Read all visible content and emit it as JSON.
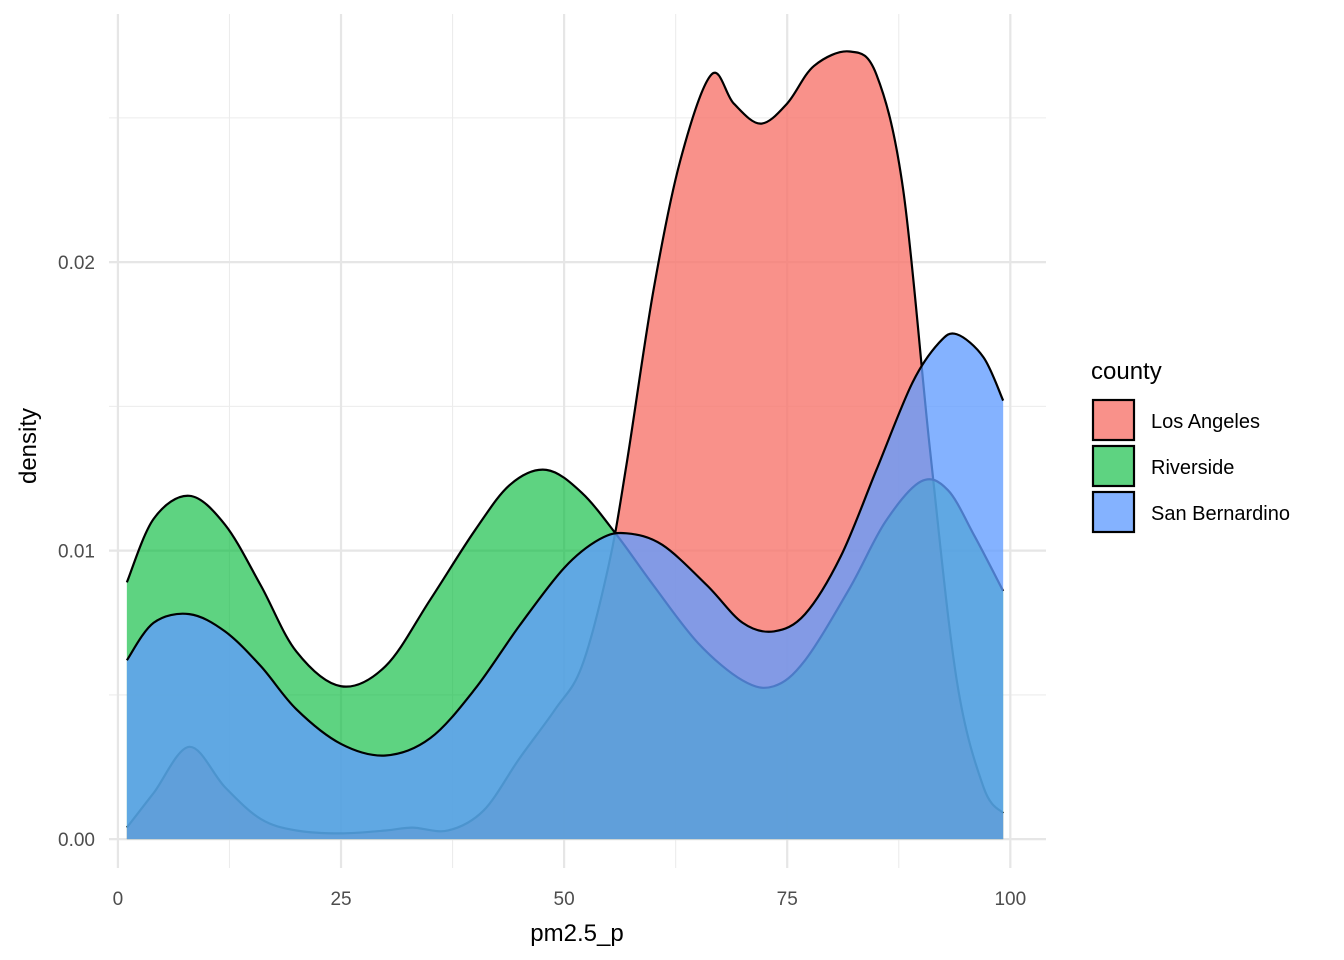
{
  "chart_data": {
    "type": "area",
    "subtype": "density",
    "xlabel": "pm2.5_p",
    "ylabel": "density",
    "xlim": [
      -1,
      104
    ],
    "ylim": [
      -0.001,
      0.0286
    ],
    "x_ticks": [
      0,
      25,
      50,
      75,
      100
    ],
    "x_tick_labels": [
      "0",
      "25",
      "50",
      "75",
      "100"
    ],
    "y_ticks": [
      0.0,
      0.01,
      0.02
    ],
    "y_tick_labels": [
      "0.00",
      "0.01",
      "0.02"
    ],
    "grid": true,
    "legend": {
      "title": "county",
      "position": "right"
    },
    "series": [
      {
        "name": "Los Angeles",
        "color": "#F8766D",
        "opacity": 0.8,
        "x": [
          1,
          4,
          8,
          12,
          16,
          20,
          25,
          30,
          33,
          37,
          41,
          45,
          49,
          52,
          55,
          57,
          60,
          63,
          66.5,
          69,
          72,
          75,
          78,
          82,
          85,
          88,
          91,
          94,
          97,
          99.2
        ],
        "y": [
          0.0004,
          0.0016,
          0.0032,
          0.0018,
          0.0007,
          0.0003,
          0.0002,
          0.0003,
          0.0004,
          0.0003,
          0.001,
          0.0028,
          0.0045,
          0.006,
          0.0095,
          0.013,
          0.019,
          0.0235,
          0.0265,
          0.0255,
          0.0248,
          0.0255,
          0.0268,
          0.0273,
          0.0265,
          0.0225,
          0.0135,
          0.0055,
          0.0018,
          0.0009
        ]
      },
      {
        "name": "Riverside",
        "color": "#00BA38",
        "opacity": 0.63,
        "x": [
          1,
          4,
          8,
          12,
          16,
          20,
          25,
          30,
          35,
          40,
          44,
          48,
          52,
          56,
          60,
          65,
          70,
          73.5,
          77,
          82,
          86,
          90,
          93,
          96,
          99.2
        ],
        "y": [
          0.0089,
          0.0111,
          0.0119,
          0.0109,
          0.0088,
          0.0065,
          0.0053,
          0.006,
          0.0083,
          0.0107,
          0.0123,
          0.0128,
          0.012,
          0.0105,
          0.0088,
          0.0068,
          0.0055,
          0.0053,
          0.0062,
          0.0087,
          0.011,
          0.0124,
          0.0121,
          0.0105,
          0.0086
        ]
      },
      {
        "name": "San Bernardino",
        "color": "#619CFF",
        "opacity": 0.78,
        "x": [
          1,
          4,
          8,
          12,
          16,
          20,
          25,
          30,
          35,
          40,
          45,
          50,
          54,
          57,
          61,
          66,
          70,
          73.5,
          77,
          81,
          85,
          89,
          92,
          94,
          97,
          99.2
        ],
        "y": [
          0.0062,
          0.0075,
          0.0078,
          0.0072,
          0.006,
          0.0045,
          0.0033,
          0.0029,
          0.0035,
          0.0052,
          0.0074,
          0.0094,
          0.0104,
          0.0106,
          0.0102,
          0.0088,
          0.0075,
          0.0072,
          0.0078,
          0.0098,
          0.0128,
          0.0158,
          0.0172,
          0.0175,
          0.0167,
          0.0152
        ]
      }
    ]
  }
}
